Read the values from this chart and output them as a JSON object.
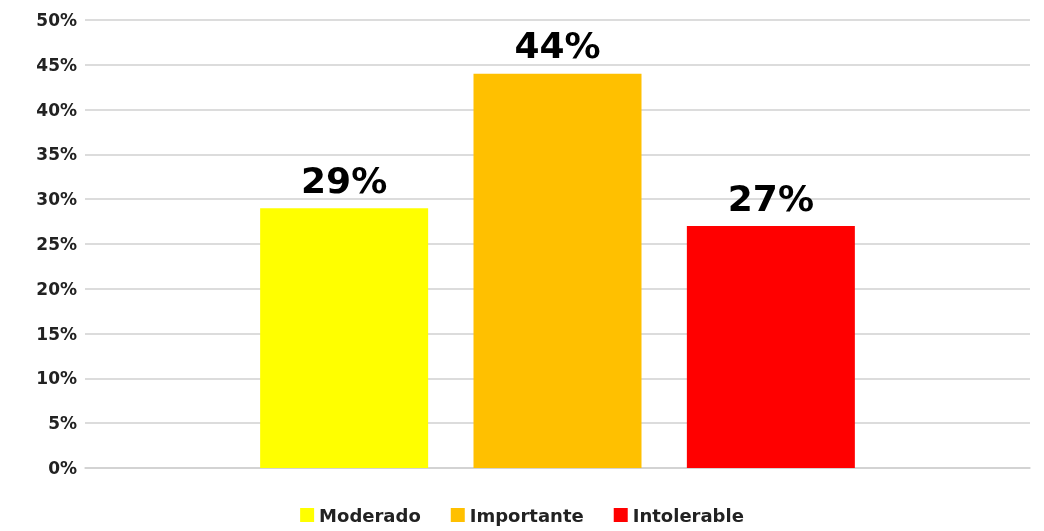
{
  "chart_data": {
    "type": "bar",
    "categories": [
      null
    ],
    "series": [
      {
        "name": "Moderado",
        "color": "#ffff00",
        "values": [
          29
        ]
      },
      {
        "name": "Importante",
        "color": "#ffc000",
        "values": [
          44
        ]
      },
      {
        "name": "Intolerable",
        "color": "#ff0000",
        "values": [
          27
        ]
      }
    ],
    "ylim": [
      0,
      50
    ],
    "yticks": [
      {
        "value": 0,
        "label": "0%"
      },
      {
        "value": 5,
        "label": "5%"
      },
      {
        "value": 10,
        "label": "10%"
      },
      {
        "value": 15,
        "label": "15%"
      },
      {
        "value": 20,
        "label": "20%"
      },
      {
        "value": 25,
        "label": "25%"
      },
      {
        "value": 30,
        "label": "30%"
      },
      {
        "value": 35,
        "label": "35%"
      },
      {
        "value": 40,
        "label": "40%"
      },
      {
        "value": 45,
        "label": "45%"
      },
      {
        "value": 50,
        "label": "50%"
      }
    ],
    "value_labels": [
      "29%",
      "44%",
      "27%"
    ],
    "grid": "y",
    "legend": "bottom"
  }
}
